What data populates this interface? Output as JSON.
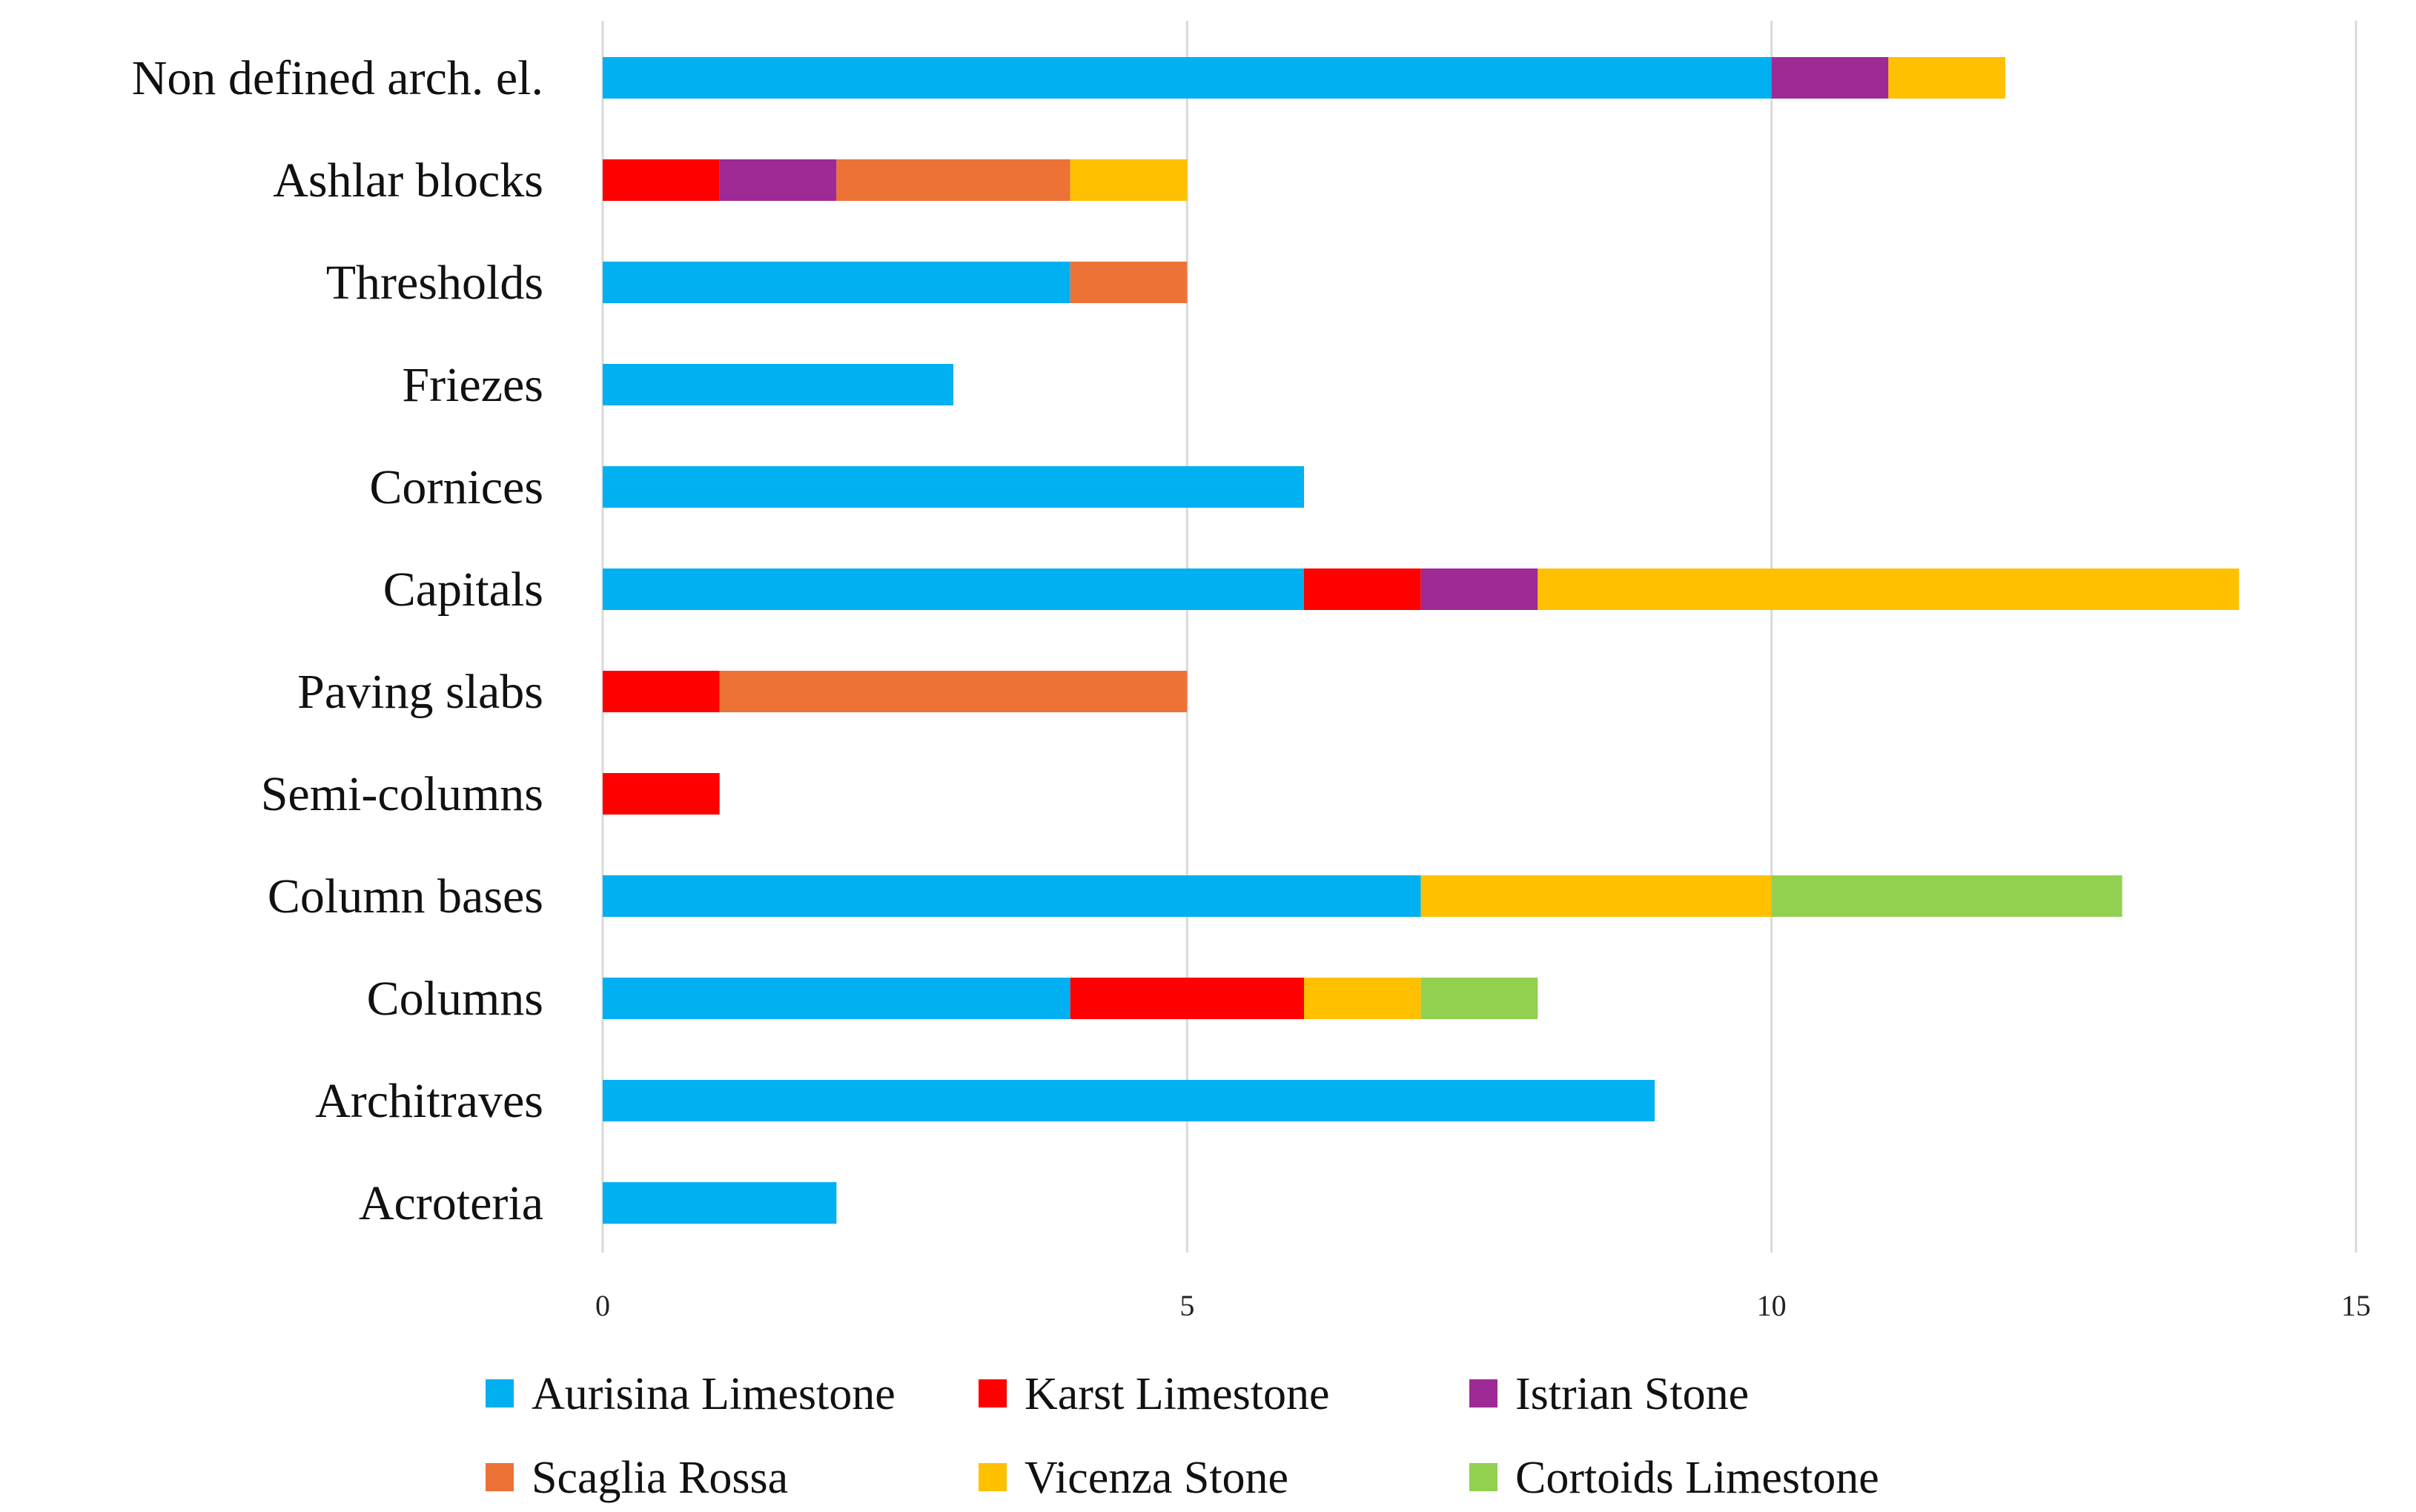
{
  "chart_data": {
    "type": "bar",
    "orientation": "horizontal",
    "stacked": true,
    "title": "",
    "xlabel": "",
    "ylabel": "",
    "xlim": [
      0,
      15
    ],
    "xticks": [
      0,
      5,
      10,
      15
    ],
    "grid": true,
    "legend_position": "bottom",
    "categories": [
      "Non defined arch. el.",
      "Ashlar blocks",
      "Thresholds",
      "Friezes",
      "Cornices",
      "Capitals",
      "Paving slabs",
      "Semi-columns",
      "Column  bases",
      "Columns",
      "Architraves",
      "Acroteria"
    ],
    "series": [
      {
        "name": "Aurisina Limestone",
        "color": "#00B0F0",
        "values": [
          10,
          0,
          4,
          3,
          6,
          6,
          0,
          0,
          7,
          4,
          9,
          2
        ]
      },
      {
        "name": "Karst Limestone",
        "color": "#FF0000",
        "values": [
          0,
          1,
          0,
          0,
          0,
          1,
          1,
          1,
          0,
          2,
          0,
          0
        ]
      },
      {
        "name": "Istrian Stone",
        "color": "#9E2A96",
        "values": [
          1,
          1,
          0,
          0,
          0,
          1,
          0,
          0,
          0,
          0,
          0,
          0
        ]
      },
      {
        "name": "Scaglia Rossa",
        "color": "#ED7236",
        "values": [
          0,
          2,
          1,
          0,
          0,
          0,
          4,
          0,
          0,
          0,
          0,
          0
        ]
      },
      {
        "name": "Vicenza Stone",
        "color": "#FFC000",
        "values": [
          1,
          1,
          0,
          0,
          0,
          6,
          0,
          0,
          3,
          1,
          0,
          0
        ]
      },
      {
        "name": "Cortoids Limestone",
        "color": "#92D050",
        "values": [
          0,
          0,
          0,
          0,
          0,
          0,
          0,
          0,
          3,
          1,
          0,
          0
        ]
      }
    ]
  }
}
